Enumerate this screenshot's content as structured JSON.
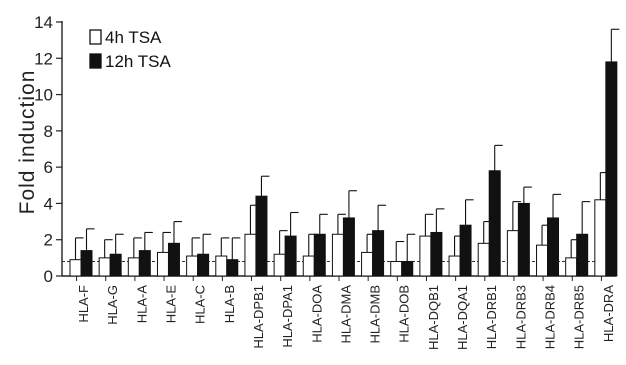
{
  "chart_data": {
    "type": "bar",
    "ylabel": "Fold induction",
    "xlabel": "",
    "ylim": [
      0,
      14
    ],
    "yticks": [
      0,
      2,
      4,
      6,
      8,
      10,
      12,
      14
    ],
    "reference_line": 0.8,
    "categories": [
      "HLA-F",
      "HLA-G",
      "HLA-A",
      "HLA-E",
      "HLA-C",
      "HLA-B",
      "HLA-DPB1",
      "HLA-DPA1",
      "HLA-DOA",
      "HLA-DMA",
      "HLA-DMB",
      "HLA-DOB",
      "HLA-DQB1",
      "HLA-DQA1",
      "HLA-DRB1",
      "HLA-DRB3",
      "HLA-DRB4",
      "HLA-DRB5",
      "HLA-DRA"
    ],
    "series": [
      {
        "name": "4h TSA",
        "color": "#ffffff",
        "values": [
          0.9,
          1.0,
          1.0,
          1.3,
          1.1,
          1.1,
          2.3,
          1.2,
          1.1,
          2.3,
          1.3,
          0.8,
          2.2,
          1.1,
          1.8,
          2.5,
          1.7,
          1.0,
          4.2
        ],
        "errors": [
          1.2,
          1.0,
          1.1,
          1.1,
          1.0,
          1.0,
          1.6,
          1.3,
          1.2,
          1.1,
          1.0,
          1.1,
          1.2,
          1.1,
          1.2,
          1.6,
          1.1,
          1.0,
          1.5
        ]
      },
      {
        "name": "12h TSA",
        "color": "#111111",
        "values": [
          1.4,
          1.2,
          1.4,
          1.8,
          1.2,
          0.9,
          4.4,
          2.2,
          2.3,
          3.2,
          2.5,
          0.8,
          2.4,
          2.8,
          5.8,
          4.0,
          3.2,
          2.3,
          11.8
        ],
        "errors": [
          1.2,
          1.1,
          1.0,
          1.2,
          1.1,
          1.2,
          1.1,
          1.3,
          1.1,
          1.5,
          1.4,
          1.5,
          1.3,
          1.4,
          1.4,
          0.9,
          1.3,
          1.8,
          1.8
        ]
      }
    ],
    "legend": {
      "position": "top-left"
    }
  }
}
